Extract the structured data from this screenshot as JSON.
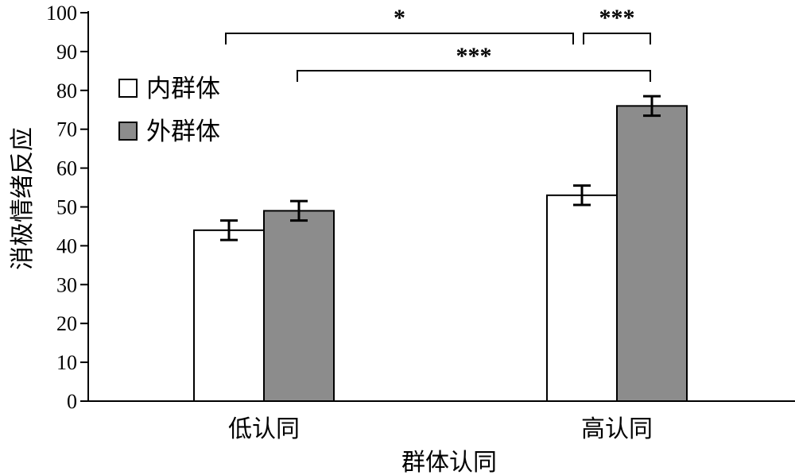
{
  "chart_data": {
    "type": "bar",
    "categories": [
      "低认同",
      "高认同"
    ],
    "series": [
      {
        "name": "内群体",
        "values": [
          44,
          53
        ],
        "errors": [
          2.5,
          2.5
        ],
        "color": "#ffffff"
      },
      {
        "name": "外群体",
        "values": [
          49,
          76
        ],
        "errors": [
          2.5,
          2.5
        ],
        "color": "#8c8c8c"
      }
    ],
    "xlabel": "群体认同",
    "ylabel": "消极情绪反应",
    "ylim": [
      0,
      100
    ],
    "yticks": [
      0,
      10,
      20,
      30,
      40,
      50,
      60,
      70,
      80,
      90,
      100
    ],
    "grid": false,
    "legend": "top-left",
    "significance": [
      {
        "from": {
          "category": 0,
          "series": 0
        },
        "to": {
          "category": 1,
          "series": 0
        },
        "label": "*"
      },
      {
        "from": {
          "category": 1,
          "series": 0
        },
        "to": {
          "category": 1,
          "series": 1
        },
        "label": "***"
      },
      {
        "from": {
          "category": 0,
          "series": 1
        },
        "to": {
          "category": 1,
          "series": 1
        },
        "label": "***"
      }
    ]
  }
}
